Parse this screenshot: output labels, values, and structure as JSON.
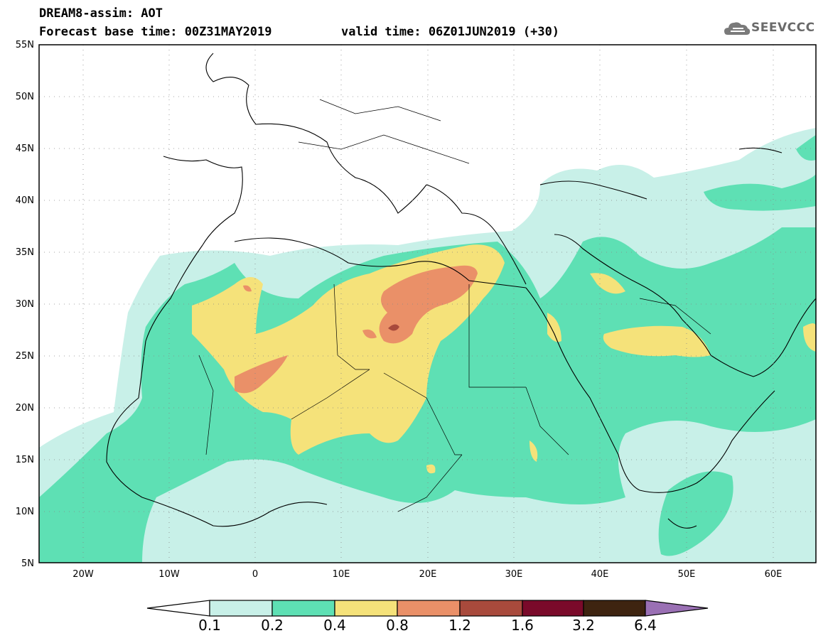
{
  "header": {
    "line1": "DREAM8-assim: AOT",
    "line2": "Forecast base time: 00Z31MAY2019",
    "valid": "valid time: 06Z01JUN2019 (+30)",
    "logo_text": "SEEVCCC",
    "logo_icon": "cloud-icon"
  },
  "map": {
    "lat_labels": [
      "55N",
      "50N",
      "45N",
      "40N",
      "35N",
      "30N",
      "25N",
      "20N",
      "15N",
      "10N",
      "5N"
    ],
    "lon_labels": [
      "20W",
      "10W",
      "0",
      "10E",
      "20E",
      "30E",
      "40E",
      "50E",
      "60E"
    ],
    "extent": {
      "lon_min": -25,
      "lon_max": 65,
      "lat_min": 5,
      "lat_max": 55
    }
  },
  "colorbar": {
    "levels": [
      "0.1",
      "0.2",
      "0.4",
      "0.8",
      "1.2",
      "1.6",
      "3.2",
      "6.4"
    ],
    "colors": [
      "#ffffff",
      "#c8f0e8",
      "#5ee0b4",
      "#f5e27a",
      "#ea9068",
      "#a84a3c",
      "#7a0a2a",
      "#3e2410",
      "#9a70b4"
    ]
  },
  "colors": {
    "level_0_1": "#c8f0e8",
    "level_0_2": "#5ee0b4",
    "level_0_4": "#f5e27a",
    "level_0_8": "#ea9068",
    "level_1_2": "#a84a3c"
  }
}
